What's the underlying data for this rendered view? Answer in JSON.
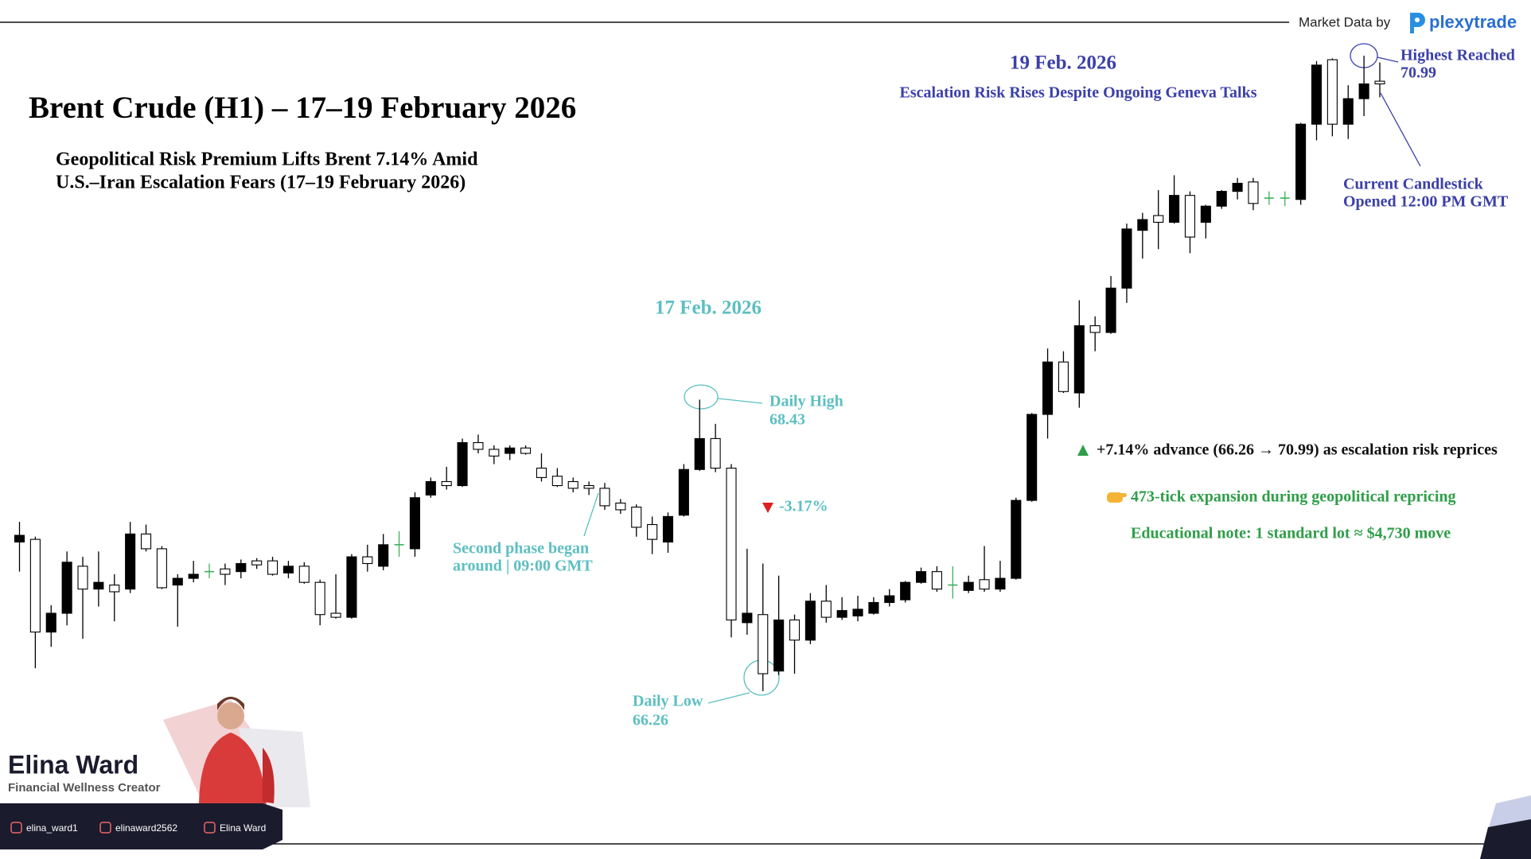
{
  "chart_data": {
    "type": "candlestick",
    "title": "Brent Crude (H1) – 17–19 February 2026",
    "subtitle": [
      "Geopolitical Risk Premium Lifts Brent 7.14% Amid",
      "U.S.–Iran Escalation Fears (17–19 February 2026)"
    ],
    "open": [
      67.37,
      67.39,
      66.7,
      66.84,
      67.19,
      67.02,
      67.05,
      67.02,
      67.43,
      67.32,
      67.05,
      67.1,
      67.15,
      67.17,
      67.15,
      67.23,
      67.23,
      67.14,
      67.19,
      67.07,
      66.84,
      66.81,
      67.26,
      67.19,
      67.35,
      67.32,
      67.72,
      67.82,
      67.79,
      68.11,
      68.06,
      68.03,
      68.07,
      67.92,
      67.86,
      67.82,
      67.79,
      67.77,
      67.66,
      67.63,
      67.5,
      67.37,
      67.57,
      67.91,
      68.14,
      67.92,
      66.77,
      66.83,
      66.41,
      66.79,
      66.64,
      66.93,
      66.81,
      66.82,
      66.84,
      66.92,
      66.94,
      67.07,
      67.15,
      67.05,
      67.01,
      67.09,
      67.02,
      67.1,
      67.68,
      68.32,
      68.71,
      68.48,
      68.98,
      68.93,
      69.26,
      69.69,
      69.8,
      69.75,
      69.95,
      69.75,
      69.87,
      69.98,
      70.05,
      69.93,
      69.93,
      69.92,
      70.48,
      70.96,
      70.48,
      70.67,
      70.8
    ],
    "high": [
      67.52,
      67.41,
      66.9,
      67.3,
      67.26,
      67.3,
      67.13,
      67.52,
      67.5,
      67.34,
      67.13,
      67.23,
      67.21,
      67.21,
      67.24,
      67.25,
      67.26,
      67.23,
      67.22,
      67.09,
      67.13,
      67.28,
      67.35,
      67.43,
      67.45,
      67.74,
      67.85,
      67.93,
      68.14,
      68.17,
      68.09,
      68.09,
      68.09,
      68.03,
      67.92,
      67.85,
      67.82,
      67.81,
      67.69,
      67.65,
      67.56,
      67.59,
      67.95,
      68.43,
      68.25,
      67.95,
      67.32,
      67.21,
      67.12,
      66.83,
      66.99,
      67.05,
      66.96,
      66.97,
      66.96,
      67.02,
      67.08,
      67.18,
      67.19,
      67.19,
      67.12,
      67.34,
      67.23,
      67.7,
      68.33,
      68.81,
      68.79,
      69.17,
      69.05,
      69.35,
      69.74,
      69.82,
      69.99,
      70.1,
      69.98,
      69.88,
      69.99,
      70.08,
      70.08,
      69.98,
      69.98,
      70.49,
      70.95,
      70.97,
      70.77,
      70.99,
      70.94
    ],
    "low": [
      67.15,
      66.43,
      66.59,
      66.75,
      66.65,
      66.89,
      66.78,
      66.99,
      67.3,
      67.02,
      66.74,
      67.07,
      67.1,
      67.05,
      67.1,
      67.17,
      67.12,
      67.1,
      67.06,
      66.75,
      66.8,
      66.8,
      67.15,
      67.16,
      67.26,
      67.26,
      67.7,
      67.76,
      67.78,
      68.03,
      67.95,
      67.98,
      68.02,
      67.82,
      67.78,
      67.74,
      67.72,
      67.61,
      67.58,
      67.41,
      67.28,
      67.29,
      67.56,
      67.9,
      67.89,
      66.66,
      66.68,
      66.26,
      66.38,
      66.39,
      66.61,
      66.77,
      66.79,
      66.78,
      66.83,
      66.89,
      66.92,
      67.06,
      67.0,
      66.95,
      66.99,
      67.0,
      67.0,
      67.09,
      67.67,
      68.14,
      68.48,
      68.37,
      68.79,
      68.92,
      69.15,
      69.48,
      69.55,
      69.74,
      69.52,
      69.63,
      69.85,
      69.92,
      69.84,
      69.88,
      69.87,
      69.88,
      70.36,
      70.39,
      70.37,
      70.54,
      70.68
    ],
    "close": [
      67.42,
      66.7,
      66.84,
      67.22,
      67.02,
      67.07,
      67.0,
      67.43,
      67.32,
      67.03,
      67.1,
      67.13,
      67.15,
      67.13,
      67.21,
      67.2,
      67.13,
      67.19,
      67.07,
      66.83,
      66.81,
      67.26,
      67.21,
      67.35,
      67.35,
      67.7,
      67.82,
      67.79,
      68.11,
      68.06,
      68.01,
      68.07,
      68.03,
      67.85,
      67.79,
      67.77,
      67.77,
      67.64,
      67.61,
      67.48,
      67.39,
      67.56,
      67.91,
      68.14,
      67.92,
      66.79,
      66.84,
      66.39,
      66.79,
      66.64,
      66.93,
      66.81,
      66.86,
      66.87,
      66.92,
      66.97,
      67.07,
      67.15,
      67.02,
      67.05,
      67.07,
      67.02,
      67.1,
      67.68,
      68.32,
      68.71,
      68.49,
      68.98,
      68.93,
      69.26,
      69.7,
      69.77,
      69.75,
      69.95,
      69.64,
      69.87,
      69.98,
      70.04,
      69.89,
      69.93,
      69.93,
      70.48,
      70.92,
      70.48,
      70.67,
      70.78,
      70.78
    ],
    "up_color": "#000000",
    "down_color": "#ffffff",
    "doji_color": "#3fae5a",
    "annotations": {
      "day1": "17 Feb. 2026",
      "day3": "19 Feb. 2026",
      "day3_note": "Escalation Risk Rises Despite Ongoing Geneva Talks",
      "daily_high": [
        "Daily High",
        "68.43"
      ],
      "daily_low": [
        "Daily Low",
        "66.26"
      ],
      "highest": [
        "Highest Reached",
        "70.99"
      ],
      "current": [
        "Current Candlestick",
        "Opened 12:00 PM GMT"
      ],
      "drop": "-3.17%",
      "second_phase": [
        "Second phase began",
        "around | 09:00 GMT"
      ],
      "advance": "+7.14% advance (66.26 → 70.99) as escalation risk reprices",
      "ticks": "473-tick expansion during geopolitical repricing",
      "note": "Educational note: 1 standard lot ≈ $4,730 move"
    }
  },
  "header": {
    "source_label": "Market Data by",
    "source_brand": "plexytrade"
  },
  "creator": {
    "name": "Elina Ward",
    "role": "Financial Wellness Creator",
    "instagram": "elina_ward1",
    "x": "elinaward2562",
    "facebook": "Elina Ward"
  }
}
